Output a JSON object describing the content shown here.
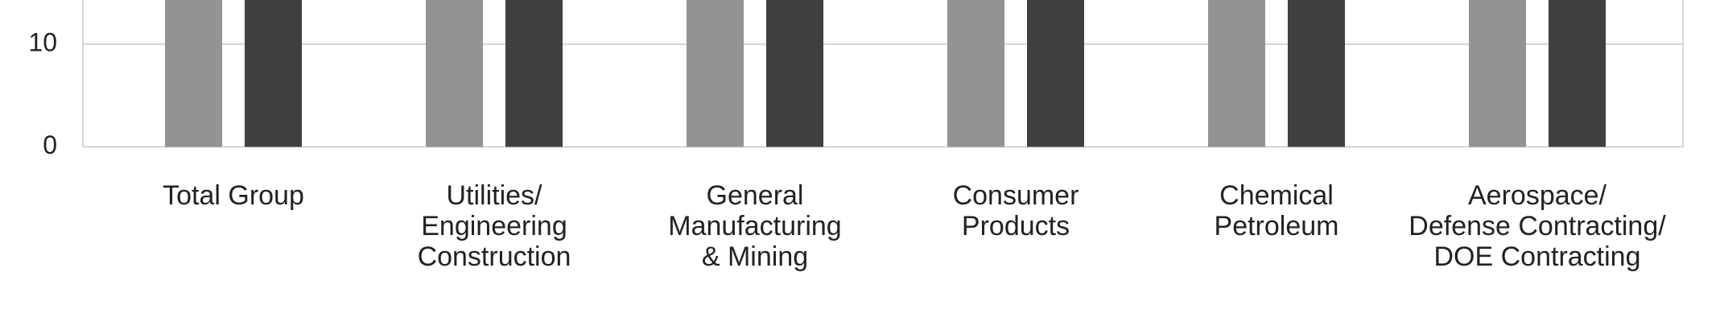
{
  "chart_data": {
    "type": "bar",
    "categories": [
      "Total Group",
      "Utilities/\nEngineering\nConstruction",
      "General\nManufacturing\n& Mining",
      "Consumer\nProducts",
      "Chemical\nPetroleum",
      "Aerospace/\nDefense Contracting/\nDOE Contracting"
    ],
    "series": [
      {
        "color": "#939393",
        "values": [
          14.3,
          14.3,
          14.3,
          14.3,
          14.3,
          14.3
        ]
      },
      {
        "color": "#404040",
        "values": [
          14.3,
          14.3,
          14.3,
          14.3,
          14.3,
          14.3
        ]
      }
    ],
    "ylim": [
      0,
      14.3
    ],
    "yticks": [
      0,
      10
    ],
    "grid": true
  }
}
